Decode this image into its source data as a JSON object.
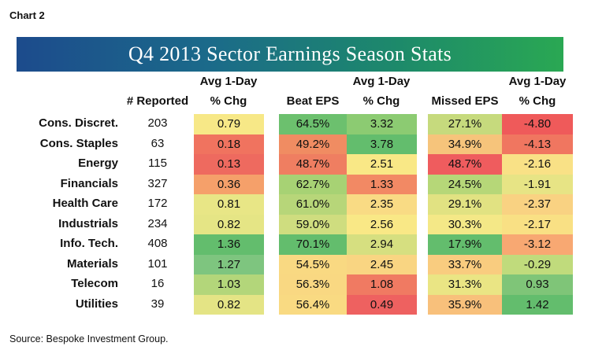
{
  "label": "Chart 2",
  "source": "Source: Bespoke Investment Group.",
  "chart_data": {
    "type": "table",
    "title": "Q4 2013 Sector Earnings Season Stats",
    "columns": [
      {
        "top": "",
        "bottom": "# Reported"
      },
      {
        "top": "Avg 1-Day",
        "bottom": "% Chg"
      },
      {
        "top": "",
        "bottom": "Beat EPS"
      },
      {
        "top": "Avg 1-Day",
        "bottom": "% Chg"
      },
      {
        "top": "",
        "bottom": "Missed EPS"
      },
      {
        "top": "Avg 1-Day",
        "bottom": "% Chg"
      }
    ],
    "rows": [
      {
        "sector": "Cons. Discret.",
        "reported": "203",
        "values": [
          "0.79",
          "64.5%",
          "3.32",
          "27.1%",
          "-4.80"
        ]
      },
      {
        "sector": "Cons. Staples",
        "reported": "63",
        "values": [
          "0.18",
          "49.2%",
          "3.78",
          "34.9%",
          "-4.13"
        ]
      },
      {
        "sector": "Energy",
        "reported": "115",
        "values": [
          "0.13",
          "48.7%",
          "2.51",
          "48.7%",
          "-2.16"
        ]
      },
      {
        "sector": "Financials",
        "reported": "327",
        "values": [
          "0.36",
          "62.7%",
          "1.33",
          "24.5%",
          "-1.91"
        ]
      },
      {
        "sector": "Health Care",
        "reported": "172",
        "values": [
          "0.81",
          "61.0%",
          "2.35",
          "29.1%",
          "-2.37"
        ]
      },
      {
        "sector": "Industrials",
        "reported": "234",
        "values": [
          "0.82",
          "59.0%",
          "2.56",
          "30.3%",
          "-2.17"
        ]
      },
      {
        "sector": "Info. Tech.",
        "reported": "408",
        "values": [
          "1.36",
          "70.1%",
          "2.94",
          "17.9%",
          "-3.12"
        ]
      },
      {
        "sector": "Materials",
        "reported": "101",
        "values": [
          "1.27",
          "54.5%",
          "2.45",
          "33.7%",
          "-0.29"
        ]
      },
      {
        "sector": "Telecom",
        "reported": "16",
        "values": [
          "1.03",
          "56.3%",
          "1.08",
          "31.3%",
          "0.93"
        ]
      },
      {
        "sector": "Utilities",
        "reported": "39",
        "values": [
          "0.82",
          "56.4%",
          "0.49",
          "35.9%",
          "1.42"
        ]
      }
    ],
    "cell_colors": [
      [
        "#f7e887",
        "#6cc06e",
        "#8ccb72",
        "#c6da7d",
        "#ef5a5a"
      ],
      [
        "#f0735f",
        "#f08c62",
        "#63bd6d",
        "#f6c47b",
        "#f07660"
      ],
      [
        "#ee6a5f",
        "#ef7e61",
        "#f9e886",
        "#ef5c5e",
        "#f9e186"
      ],
      [
        "#f5a06a",
        "#a7d274",
        "#f28964",
        "#b6d778",
        "#e7e485"
      ],
      [
        "#e8e686",
        "#b7d679",
        "#f9db84",
        "#e1e282",
        "#f9d282"
      ],
      [
        "#e5e585",
        "#cfdd7f",
        "#f9e886",
        "#f4e887",
        "#f9e084"
      ],
      [
        "#63bd6d",
        "#63bd6d",
        "#d6df80",
        "#63bd6d",
        "#f8a872"
      ],
      [
        "#7ec57f",
        "#f9d982",
        "#f9d582",
        "#f9cc7f",
        "#c0db7c"
      ],
      [
        "#b3d67a",
        "#f9d882",
        "#f07a62",
        "#eae584",
        "#7fc578"
      ],
      [
        "#e4e485",
        "#f9da82",
        "#ee6160",
        "#f8c07b",
        "#63bd6d"
      ]
    ]
  }
}
